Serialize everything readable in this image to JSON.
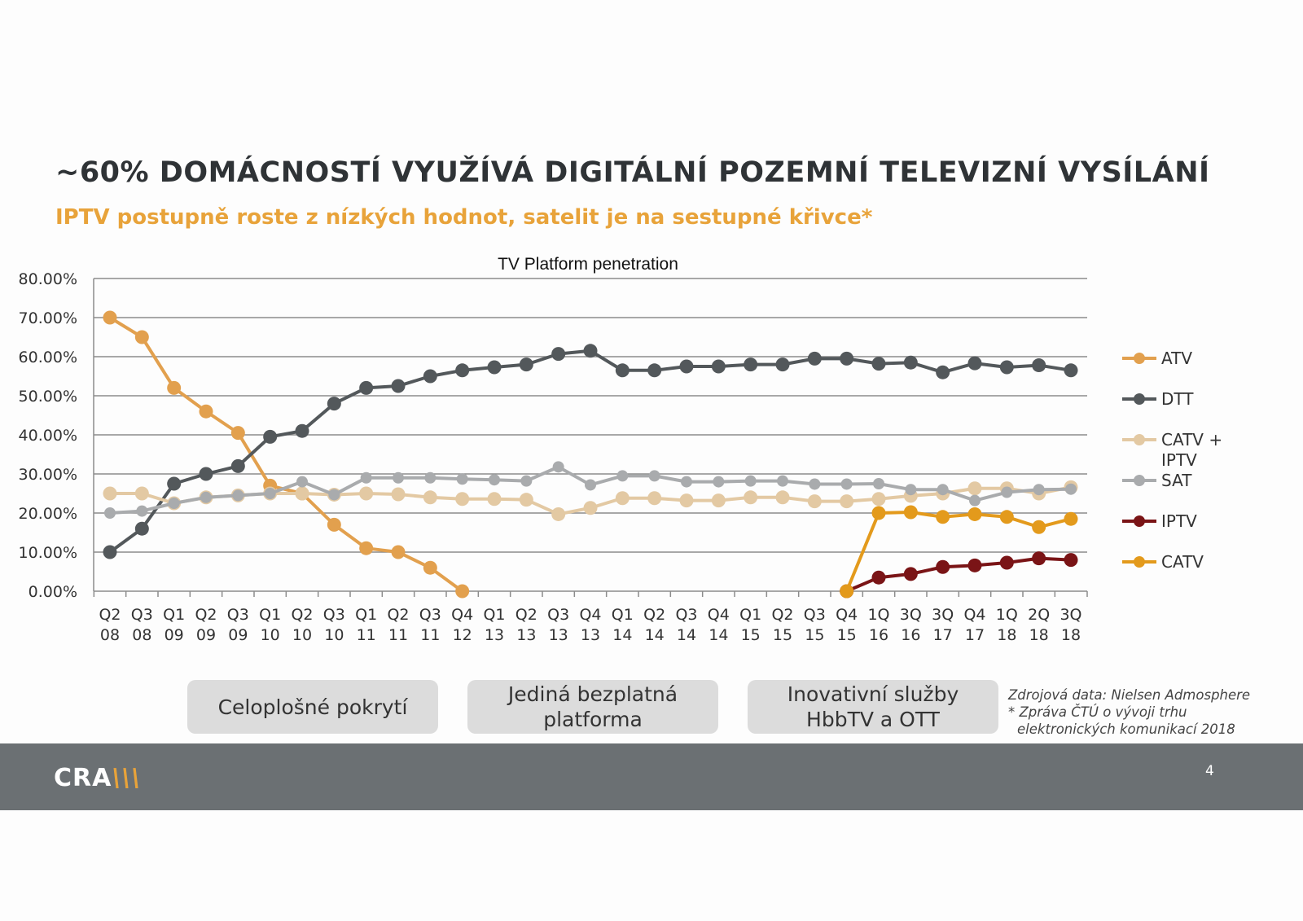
{
  "header": {
    "title": "~60% DOMÁCNOSTÍ VYUŽÍVÁ DIGITÁLNÍ POZEMNÍ TELEVIZNÍ VYSÍLÁNÍ",
    "subtitle": "IPTV postupně roste z nízkých hodnot, satelit je na sestupné křivce*"
  },
  "chart_data": {
    "type": "line",
    "title": "TV Platform penetration",
    "xlabel": "",
    "ylabel": "",
    "ylim": [
      0,
      80
    ],
    "yticks": [
      "0.00%",
      "10.00%",
      "20.00%",
      "30.00%",
      "40.00%",
      "50.00%",
      "60.00%",
      "70.00%",
      "80.00%"
    ],
    "grid": true,
    "legend": "right",
    "categories": [
      "Q2 08",
      "Q3 08",
      "Q1 09",
      "Q2 09",
      "Q3 09",
      "Q1 10",
      "Q2 10",
      "Q3 10",
      "Q1 11",
      "Q2 11",
      "Q3 11",
      "Q4 12",
      "Q1 13",
      "Q2 13",
      "Q3 13",
      "Q4 13",
      "Q1 14",
      "Q2 14",
      "Q3 14",
      "Q4 14",
      "Q1 15",
      "Q2 15",
      "Q3 15",
      "Q4 15",
      "1Q 16",
      "3Q 16",
      "3Q 17",
      "Q4 17",
      "1Q 18",
      "2Q 18",
      "3Q 18"
    ],
    "series": [
      {
        "name": "ATV",
        "color": "#e2a04e",
        "values": [
          70,
          65,
          52,
          46,
          40.5,
          27,
          25,
          17,
          11,
          10,
          6,
          0,
          null,
          null,
          null,
          null,
          null,
          null,
          null,
          null,
          null,
          null,
          null,
          null,
          null,
          null,
          null,
          null,
          null,
          null,
          null
        ]
      },
      {
        "name": "DTT",
        "color": "#53585b",
        "values": [
          10,
          16,
          27.5,
          30,
          32,
          39.5,
          41,
          48,
          52,
          52.5,
          55,
          56.5,
          57.3,
          58,
          60.7,
          61.5,
          56.5,
          56.5,
          57.5,
          57.5,
          58,
          58,
          59.5,
          59.5,
          58.2,
          58.5,
          56,
          58.3,
          57.3,
          57.8,
          56.5
        ]
      },
      {
        "name": "CATV + IPTV",
        "color": "#e3c9a3",
        "values": [
          25,
          25,
          22.5,
          24,
          24.5,
          25,
          25,
          24.7,
          25,
          24.8,
          24,
          23.6,
          23.6,
          23.4,
          19.7,
          21.3,
          23.8,
          23.8,
          23.2,
          23.2,
          24,
          24,
          23,
          23,
          23.6,
          24.4,
          25,
          26.3,
          26.3,
          25,
          26.6
        ]
      },
      {
        "name": "SAT",
        "color": "#a9abad",
        "values": [
          20,
          20.5,
          22.5,
          24,
          24.5,
          25,
          28,
          24.7,
          29,
          29,
          29,
          28.7,
          28.5,
          28.2,
          31.8,
          27.2,
          29.5,
          29.5,
          28,
          28,
          28.2,
          28.2,
          27.4,
          27.4,
          27.5,
          26,
          26,
          23.2,
          25.3,
          26,
          26.1
        ]
      },
      {
        "name": "IPTV",
        "color": "#7a1416",
        "values": [
          null,
          null,
          null,
          null,
          null,
          null,
          null,
          null,
          null,
          null,
          null,
          null,
          null,
          null,
          null,
          null,
          null,
          null,
          null,
          null,
          null,
          null,
          null,
          0,
          3.5,
          4.4,
          6.2,
          6.6,
          7.3,
          8.4,
          8.0
        ]
      },
      {
        "name": "CATV",
        "color": "#e39a1c",
        "values": [
          null,
          null,
          null,
          null,
          null,
          null,
          null,
          null,
          null,
          null,
          null,
          null,
          null,
          null,
          null,
          null,
          null,
          null,
          null,
          null,
          null,
          null,
          null,
          0,
          20,
          20.2,
          19,
          19.7,
          19,
          16.4,
          18.5
        ]
      }
    ]
  },
  "pills": [
    "Celoplošné pokrytí",
    "Jediná bezplatná platforma",
    "Inovativní služby HbbTV a OTT"
  ],
  "source": {
    "line1": "Zdrojová data: Nielsen Admosphere",
    "line2": "* Zpráva ČTÚ o vývoji trhu",
    "line3": "elektronických komunikací 2018"
  },
  "footer": {
    "logo": "CRA",
    "page_number": "4"
  }
}
